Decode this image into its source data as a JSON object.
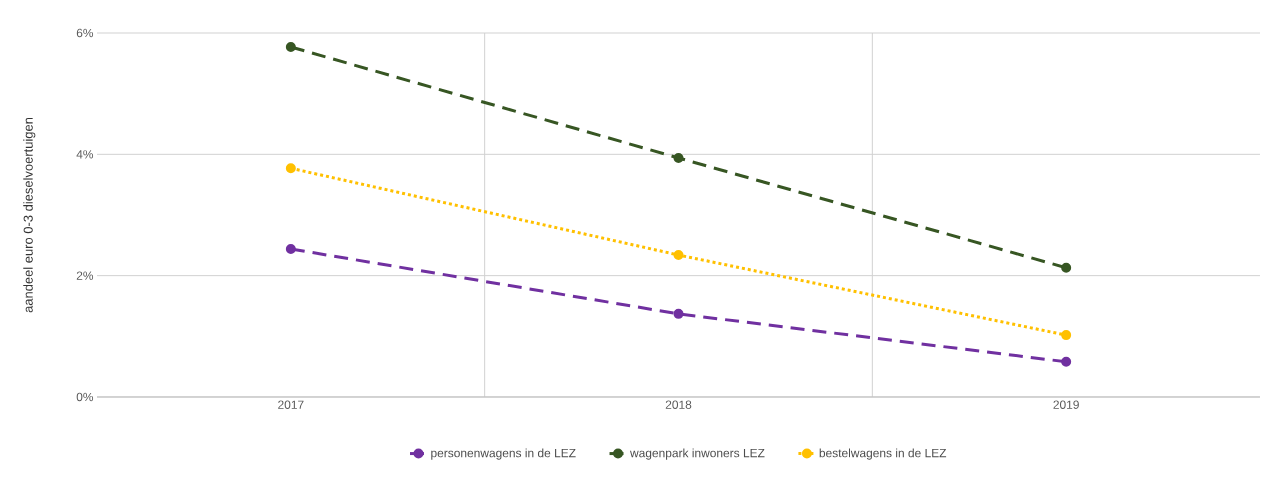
{
  "chart_data": {
    "type": "line",
    "ylabel": "aandeel euro 0-3 dieselvoertuigen",
    "categories": [
      "2017",
      "2018",
      "2019"
    ],
    "series": [
      {
        "name": "personenwagens in de LEZ",
        "color": "#7030a0",
        "values": [
          2.44,
          1.37,
          0.58
        ],
        "line_style": "dashed"
      },
      {
        "name": "wagenpark inwoners LEZ",
        "color": "#375623",
        "values": [
          5.77,
          3.94,
          2.13
        ],
        "line_style": "dashed"
      },
      {
        "name": "bestelwagens in de LEZ",
        "color": "#ffc000",
        "values": [
          3.77,
          2.34,
          1.02
        ],
        "line_style": "dotted"
      }
    ],
    "ylim": [
      0,
      6
    ],
    "yticks": [
      {
        "value": 0,
        "label": "0%"
      },
      {
        "value": 2,
        "label": "2%"
      },
      {
        "value": 4,
        "label": "4%"
      },
      {
        "value": 6,
        "label": "6%"
      }
    ],
    "grid": true,
    "legend": "bottom",
    "marker": "circle"
  }
}
